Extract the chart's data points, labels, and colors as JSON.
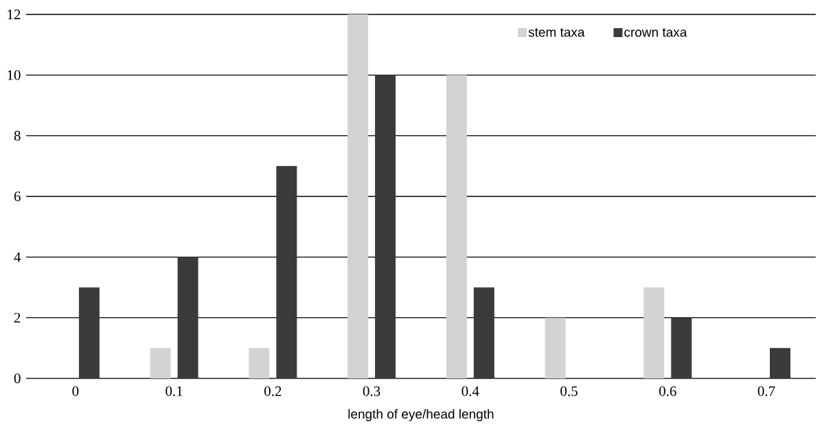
{
  "chart_data": {
    "type": "bar",
    "xlabel": "length of eye/head length",
    "categories": [
      "0",
      "0.1",
      "0.2",
      "0.3",
      "0.4",
      "0.5",
      "0.6",
      "0.7"
    ],
    "series": [
      {
        "name": "stem taxa",
        "color": "#d3d3d3",
        "values": [
          null,
          1,
          1,
          12,
          10,
          2,
          3,
          null
        ]
      },
      {
        "name": "crown taxa",
        "color": "#3a3a3a",
        "values": [
          3,
          4,
          7,
          10,
          3,
          null,
          2,
          1
        ]
      }
    ],
    "ylim": [
      0,
      12
    ],
    "yticks": [
      0,
      2,
      4,
      6,
      8,
      10,
      12
    ],
    "grid": "y",
    "legend": "top right"
  }
}
